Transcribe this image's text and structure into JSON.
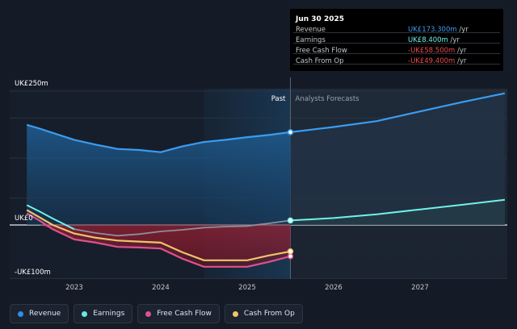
{
  "tooltip": {
    "date": "Jun 30 2025",
    "rows": [
      {
        "label": "Revenue",
        "value": "UK£173.300m",
        "unit": " /yr",
        "color": "#3d9cf0"
      },
      {
        "label": "Earnings",
        "value": "UK£8.400m",
        "unit": " /yr",
        "color": "#6ff2e8"
      },
      {
        "label": "Free Cash Flow",
        "value": "-UK£58.500m",
        "unit": " /yr",
        "color": "#f04b4b"
      },
      {
        "label": "Cash From Op",
        "value": "-UK£49.400m",
        "unit": " /yr",
        "color": "#f04b4b"
      }
    ]
  },
  "legend": [
    {
      "label": "Revenue",
      "color": "#2f8fe8"
    },
    {
      "label": "Earnings",
      "color": "#6ee6e0"
    },
    {
      "label": "Free Cash Flow",
      "color": "#e0508f"
    },
    {
      "label": "Cash From Op",
      "color": "#f2c26b"
    }
  ],
  "chart_data": {
    "type": "line",
    "ylim": [
      -100,
      250
    ],
    "xlim": [
      2022.45,
      2027.98
    ],
    "y_tick_labels": [
      {
        "value": 250,
        "label": "UK£250m"
      },
      {
        "value": 0,
        "label": "UK£0"
      },
      {
        "value": -100,
        "label": "-UK£100m"
      }
    ],
    "x_tick_labels": [
      {
        "value": 2023,
        "label": "2023"
      },
      {
        "value": 2024,
        "label": "2024"
      },
      {
        "value": 2025,
        "label": "2025"
      },
      {
        "value": 2026,
        "label": "2026"
      },
      {
        "value": 2027,
        "label": "2027"
      }
    ],
    "divider_x": 2025.5,
    "past_label": "Past",
    "forecast_label": "Analysts Forecasts",
    "series": [
      {
        "name": "Revenue",
        "color": "#3b9cf0",
        "x": [
          2022.45,
          2022.6,
          2022.75,
          2023.0,
          2023.25,
          2023.5,
          2023.75,
          2024.0,
          2024.25,
          2024.5,
          2024.75,
          2025.0,
          2025.25,
          2025.5
        ],
        "y": [
          187,
          180,
          172,
          159,
          150,
          142,
          140,
          136,
          147,
          155,
          159,
          164,
          168,
          173.3
        ],
        "forecast_x": [
          2025.5,
          2026.0,
          2026.5,
          2027.0,
          2027.5,
          2027.98
        ],
        "forecast_y": [
          173.3,
          183,
          194,
          212,
          230,
          246
        ]
      },
      {
        "name": "Earnings",
        "color": "#6ff2e8",
        "x": [
          2022.45,
          2022.6,
          2022.75,
          2023.0,
          2023.25,
          2023.5,
          2023.75,
          2024.0,
          2024.25,
          2024.5,
          2024.75,
          2025.0,
          2025.25,
          2025.5
        ],
        "y": [
          37,
          25,
          12,
          -8,
          -15,
          -20,
          -17,
          -12,
          -9,
          -5,
          -3,
          -2,
          3,
          8.4
        ],
        "forecast_x": [
          2025.5,
          2026.0,
          2026.5,
          2027.0,
          2027.5,
          2027.98
        ],
        "forecast_y": [
          8.4,
          13,
          20,
          29,
          38,
          47
        ]
      },
      {
        "name": "Free Cash Flow",
        "color": "#e0508f",
        "x": [
          2022.45,
          2022.6,
          2022.75,
          2023.0,
          2023.25,
          2023.5,
          2023.75,
          2024.0,
          2024.25,
          2024.5,
          2024.75,
          2025.0,
          2025.25,
          2025.5
        ],
        "y": [
          22,
          8,
          -8,
          -27,
          -33,
          -41,
          -42,
          -44,
          -63,
          -78,
          -78,
          -78,
          -69,
          -58.5
        ]
      },
      {
        "name": "Cash From Op",
        "color": "#f2c26b",
        "x": [
          2022.45,
          2022.6,
          2022.75,
          2023.0,
          2023.25,
          2023.5,
          2023.75,
          2024.0,
          2024.25,
          2024.5,
          2024.75,
          2025.0,
          2025.25,
          2025.5
        ],
        "y": [
          28,
          14,
          0,
          -16,
          -24,
          -29,
          -31,
          -33,
          -51,
          -66,
          -66,
          -66,
          -57,
          -49.4
        ]
      }
    ]
  }
}
